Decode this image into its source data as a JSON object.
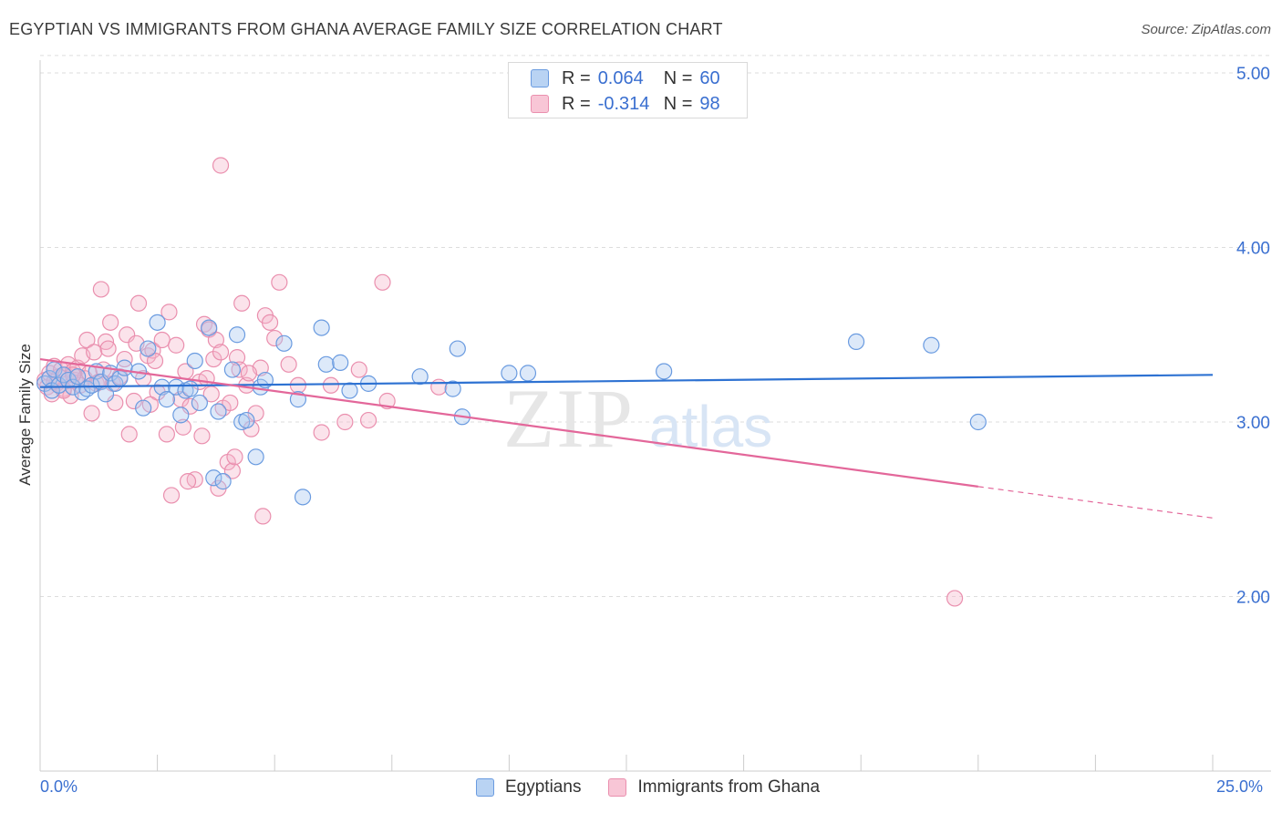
{
  "title": "EGYPTIAN VS IMMIGRANTS FROM GHANA AVERAGE FAMILY SIZE CORRELATION CHART",
  "source": "Source: ZipAtlas.com",
  "watermark": {
    "zip": "ZIP",
    "atlas": "atlas"
  },
  "legend_top": [
    {
      "r_label": "R =",
      "r_value": "0.064",
      "n_label": "N =",
      "n_value": "60"
    },
    {
      "r_label": "R =",
      "r_value": "-0.314",
      "n_label": "N =",
      "n_value": "98"
    }
  ],
  "colors": {
    "blue_fill": "#a9c8f0",
    "blue_stroke": "#6a9be0",
    "blue_line": "#2e72d2",
    "pink_fill": "#f5b6ca",
    "pink_stroke": "#ea8fae",
    "pink_line": "#e3679a",
    "tick_text": "#3a6fd0",
    "grid": "#dddddd"
  },
  "chart_data": {
    "type": "scatter",
    "title": "EGYPTIAN VS IMMIGRANTS FROM GHANA AVERAGE FAMILY SIZE CORRELATION CHART",
    "xlabel": "",
    "ylabel": "Average Family Size",
    "xlim": [
      0,
      25
    ],
    "ylim": [
      1.0,
      5.1
    ],
    "x_tick_labels": [
      "0.0%",
      "25.0%"
    ],
    "y_ticks": [
      2.0,
      3.0,
      4.0,
      5.0
    ],
    "y_tick_labels": [
      "2.00",
      "3.00",
      "4.00",
      "5.00"
    ],
    "grid": true,
    "series": [
      {
        "name": "Egyptians",
        "color": "#a9c8f0",
        "trend": {
          "x": [
            0,
            25
          ],
          "y": [
            3.2,
            3.27
          ]
        },
        "points": [
          [
            0.1,
            3.22
          ],
          [
            0.2,
            3.25
          ],
          [
            0.25,
            3.18
          ],
          [
            0.3,
            3.3
          ],
          [
            0.4,
            3.21
          ],
          [
            0.5,
            3.27
          ],
          [
            0.6,
            3.24
          ],
          [
            0.7,
            3.2
          ],
          [
            0.8,
            3.26
          ],
          [
            0.9,
            3.17
          ],
          [
            1.0,
            3.19
          ],
          [
            1.1,
            3.21
          ],
          [
            1.2,
            3.29
          ],
          [
            1.3,
            3.23
          ],
          [
            1.4,
            3.16
          ],
          [
            1.5,
            3.28
          ],
          [
            1.6,
            3.22
          ],
          [
            1.7,
            3.25
          ],
          [
            1.8,
            3.31
          ],
          [
            2.1,
            3.29
          ],
          [
            2.2,
            3.08
          ],
          [
            2.5,
            3.57
          ],
          [
            2.6,
            3.2
          ],
          [
            2.7,
            3.13
          ],
          [
            2.9,
            3.2
          ],
          [
            3.0,
            3.04
          ],
          [
            3.1,
            3.18
          ],
          [
            3.2,
            3.19
          ],
          [
            3.3,
            3.35
          ],
          [
            3.4,
            3.11
          ],
          [
            3.6,
            3.54
          ],
          [
            3.7,
            2.68
          ],
          [
            3.8,
            3.06
          ],
          [
            3.9,
            2.66
          ],
          [
            4.1,
            3.3
          ],
          [
            4.2,
            3.5
          ],
          [
            4.3,
            3.0
          ],
          [
            4.4,
            3.01
          ],
          [
            4.6,
            2.8
          ],
          [
            4.7,
            3.2
          ],
          [
            4.8,
            3.24
          ],
          [
            5.2,
            3.45
          ],
          [
            5.5,
            3.13
          ],
          [
            5.6,
            2.57
          ],
          [
            6.0,
            3.54
          ],
          [
            6.1,
            3.33
          ],
          [
            6.4,
            3.34
          ],
          [
            6.6,
            3.18
          ],
          [
            7.0,
            3.22
          ],
          [
            8.1,
            3.26
          ],
          [
            8.8,
            3.19
          ],
          [
            8.9,
            3.42
          ],
          [
            9.0,
            3.03
          ],
          [
            10.0,
            3.28
          ],
          [
            10.4,
            3.28
          ],
          [
            13.3,
            3.29
          ],
          [
            17.4,
            3.46
          ],
          [
            19.0,
            3.44
          ],
          [
            20.0,
            3.0
          ],
          [
            2.3,
            3.42
          ]
        ]
      },
      {
        "name": "Immigrants from Ghana",
        "color": "#f5b6ca",
        "trend": {
          "x": [
            0,
            20
          ],
          "y": [
            3.36,
            2.63
          ]
        },
        "trend_dashed": {
          "x": [
            20,
            25
          ],
          "y": [
            2.63,
            2.45
          ]
        },
        "points": [
          [
            0.1,
            3.24
          ],
          [
            0.15,
            3.2
          ],
          [
            0.2,
            3.28
          ],
          [
            0.25,
            3.16
          ],
          [
            0.3,
            3.32
          ],
          [
            0.35,
            3.22
          ],
          [
            0.4,
            3.26
          ],
          [
            0.45,
            3.3
          ],
          [
            0.5,
            3.19
          ],
          [
            0.55,
            3.27
          ],
          [
            0.6,
            3.33
          ],
          [
            0.65,
            3.15
          ],
          [
            0.7,
            3.29
          ],
          [
            0.75,
            3.24
          ],
          [
            0.8,
            3.31
          ],
          [
            0.85,
            3.21
          ],
          [
            0.9,
            3.38
          ],
          [
            0.95,
            3.25
          ],
          [
            1.0,
            3.47
          ],
          [
            1.05,
            3.28
          ],
          [
            1.1,
            3.05
          ],
          [
            1.15,
            3.4
          ],
          [
            1.2,
            3.22
          ],
          [
            1.3,
            3.76
          ],
          [
            1.35,
            3.3
          ],
          [
            1.4,
            3.46
          ],
          [
            1.5,
            3.57
          ],
          [
            1.55,
            3.22
          ],
          [
            1.6,
            3.11
          ],
          [
            1.7,
            3.26
          ],
          [
            1.8,
            3.36
          ],
          [
            1.85,
            3.5
          ],
          [
            1.9,
            2.93
          ],
          [
            2.0,
            3.12
          ],
          [
            2.05,
            3.45
          ],
          [
            2.1,
            3.68
          ],
          [
            2.2,
            3.25
          ],
          [
            2.3,
            3.38
          ],
          [
            2.4,
            3.41
          ],
          [
            2.5,
            3.17
          ],
          [
            2.6,
            3.47
          ],
          [
            2.7,
            2.93
          ],
          [
            2.75,
            3.63
          ],
          [
            2.8,
            2.58
          ],
          [
            2.9,
            3.44
          ],
          [
            3.0,
            3.13
          ],
          [
            3.05,
            2.97
          ],
          [
            3.1,
            3.29
          ],
          [
            3.2,
            3.09
          ],
          [
            3.3,
            2.67
          ],
          [
            3.4,
            3.23
          ],
          [
            3.45,
            2.92
          ],
          [
            3.5,
            3.56
          ],
          [
            3.55,
            3.25
          ],
          [
            3.6,
            3.53
          ],
          [
            3.65,
            3.16
          ],
          [
            3.7,
            3.36
          ],
          [
            3.75,
            3.47
          ],
          [
            3.8,
            2.62
          ],
          [
            3.85,
            3.4
          ],
          [
            3.9,
            3.08
          ],
          [
            4.0,
            2.77
          ],
          [
            4.1,
            2.72
          ],
          [
            4.2,
            3.37
          ],
          [
            4.25,
            3.3
          ],
          [
            4.4,
            3.21
          ],
          [
            4.5,
            2.96
          ],
          [
            4.6,
            3.05
          ],
          [
            4.7,
            3.31
          ],
          [
            4.75,
            2.46
          ],
          [
            4.8,
            3.61
          ],
          [
            4.9,
            3.57
          ],
          [
            5.0,
            3.48
          ],
          [
            5.1,
            3.8
          ],
          [
            5.5,
            3.21
          ],
          [
            6.0,
            2.94
          ],
          [
            6.5,
            3.0
          ],
          [
            7.0,
            3.01
          ],
          [
            7.3,
            3.8
          ],
          [
            7.4,
            3.12
          ],
          [
            8.5,
            3.2
          ],
          [
            3.85,
            4.47
          ],
          [
            19.5,
            1.99
          ],
          [
            0.3,
            3.23
          ],
          [
            0.5,
            3.18
          ],
          [
            0.7,
            3.27
          ],
          [
            1.25,
            3.23
          ],
          [
            1.45,
            3.42
          ],
          [
            2.35,
            3.1
          ],
          [
            3.15,
            2.66
          ],
          [
            4.15,
            2.8
          ],
          [
            4.3,
            3.68
          ],
          [
            4.05,
            3.11
          ],
          [
            4.45,
            3.28
          ],
          [
            5.3,
            3.33
          ],
          [
            6.2,
            3.21
          ],
          [
            6.8,
            3.3
          ],
          [
            2.45,
            3.35
          ]
        ]
      }
    ]
  }
}
